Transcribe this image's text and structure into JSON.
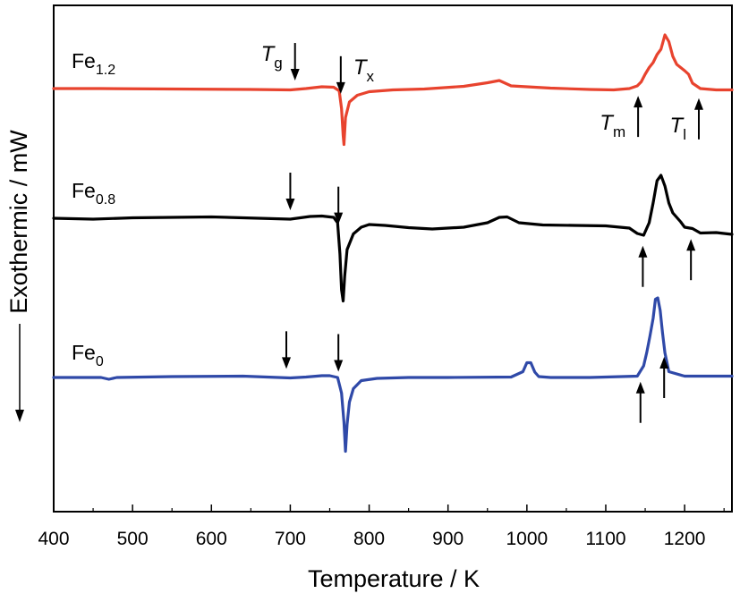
{
  "chart_data": {
    "type": "line",
    "xlabel": "Temperature / K",
    "ylabel": "Exothermic / mW",
    "xlim": [
      400,
      1260
    ],
    "xticks": [
      400,
      500,
      600,
      700,
      800,
      900,
      1000,
      1100,
      1200
    ],
    "y_ticks_shown": false,
    "grid": false,
    "series": [
      {
        "name_main": "Fe",
        "name_sub": "1.2",
        "color": "#e8432e",
        "x": [
          400,
          460,
          550,
          650,
          700,
          720,
          740,
          755,
          762,
          765,
          767,
          768,
          770,
          775,
          785,
          800,
          830,
          870,
          920,
          950,
          965,
          980,
          1030,
          1080,
          1110,
          1130,
          1140,
          1145,
          1150,
          1155,
          1160,
          1165,
          1170,
          1175,
          1180,
          1185,
          1190,
          1195,
          1200,
          1205,
          1210,
          1220,
          1240,
          1260
        ],
        "y": [
          0.0,
          0.0,
          -0.1,
          -0.2,
          -0.3,
          0.0,
          0.4,
          0.3,
          -0.5,
          -4.5,
          -10.5,
          -12.5,
          -6.5,
          -3.0,
          -1.5,
          -0.7,
          -0.3,
          -0.1,
          0.5,
          1.3,
          1.8,
          0.6,
          0.1,
          -0.2,
          -0.3,
          0.0,
          0.6,
          1.5,
          3.2,
          4.7,
          5.8,
          7.6,
          8.8,
          12.0,
          10.5,
          7.2,
          5.4,
          4.7,
          4.0,
          3.2,
          1.2,
          0.0,
          -0.3,
          -0.3
        ]
      },
      {
        "name_main": "Fe",
        "name_sub": "0.8",
        "color": "#000000",
        "x": [
          400,
          450,
          500,
          600,
          700,
          725,
          740,
          755,
          760,
          763,
          765,
          767,
          769,
          772,
          780,
          790,
          800,
          820,
          850,
          880,
          920,
          950,
          965,
          975,
          990,
          1020,
          1060,
          1100,
          1130,
          1140,
          1148,
          1155,
          1160,
          1165,
          1170,
          1175,
          1180,
          1185,
          1190,
          1195,
          1200,
          1210,
          1220,
          1240,
          1260
        ],
        "y": [
          0.0,
          -0.2,
          0.1,
          0.3,
          -0.2,
          0.4,
          0.5,
          0.2,
          -1.0,
          -8.0,
          -16.0,
          -18.5,
          -13.0,
          -7.0,
          -3.5,
          -2.0,
          -1.4,
          -1.6,
          -2.1,
          -2.4,
          -2.0,
          -1.0,
          0.2,
          0.3,
          -1.0,
          -1.5,
          -1.6,
          -1.7,
          -2.2,
          -3.4,
          -3.8,
          -1.0,
          3.4,
          8.4,
          9.6,
          7.2,
          3.4,
          1.2,
          0.2,
          -0.8,
          -2.0,
          -2.3,
          -3.3,
          -3.2,
          -3.6
        ]
      },
      {
        "name_main": "Fe",
        "name_sub": "0",
        "color": "#2f49a8",
        "x": [
          400,
          460,
          470,
          480,
          550,
          640,
          700,
          720,
          740,
          750,
          760,
          765,
          768,
          770,
          772,
          775,
          780,
          790,
          810,
          850,
          900,
          980,
          995,
          1000,
          1005,
          1010,
          1015,
          1030,
          1080,
          1140,
          1148,
          1152,
          1156,
          1160,
          1163,
          1166,
          1169,
          1172,
          1175,
          1180,
          1200,
          1260
        ],
        "y": [
          0.0,
          0.0,
          -0.4,
          0.0,
          0.2,
          0.3,
          -0.1,
          0.1,
          0.4,
          0.4,
          0.0,
          -3.5,
          -10.0,
          -16.5,
          -10.5,
          -5.5,
          -2.5,
          -0.7,
          -0.2,
          0.0,
          0.0,
          0.1,
          1.3,
          3.3,
          3.3,
          1.2,
          0.2,
          0.0,
          0.0,
          0.3,
          2.6,
          5.6,
          9.2,
          13.2,
          17.5,
          17.8,
          15.0,
          10.0,
          5.5,
          1.3,
          0.3,
          0.3
        ]
      }
    ],
    "markers": [
      {
        "series": 0,
        "x": 706,
        "dir": "down",
        "label_main": "T",
        "label_sub": "g",
        "label_pos": "left"
      },
      {
        "series": 0,
        "x": 764,
        "dir": "down",
        "label_main": "T",
        "label_sub": "x",
        "label_pos": "right"
      },
      {
        "series": 0,
        "x": 1141,
        "dir": "up",
        "label_main": "T",
        "label_sub": "m",
        "label_pos": "left"
      },
      {
        "series": 0,
        "x": 1218,
        "dir": "up",
        "label_main": "T",
        "label_sub": "l",
        "label_pos": "left"
      },
      {
        "series": 1,
        "x": 700,
        "dir": "down"
      },
      {
        "series": 1,
        "x": 761,
        "dir": "down"
      },
      {
        "series": 1,
        "x": 1147,
        "dir": "up"
      },
      {
        "series": 1,
        "x": 1208,
        "dir": "up"
      },
      {
        "series": 2,
        "x": 695,
        "dir": "down"
      },
      {
        "series": 2,
        "x": 761,
        "dir": "down"
      },
      {
        "series": 2,
        "x": 1144,
        "dir": "up"
      },
      {
        "series": 2,
        "x": 1174,
        "dir": "up"
      }
    ]
  }
}
